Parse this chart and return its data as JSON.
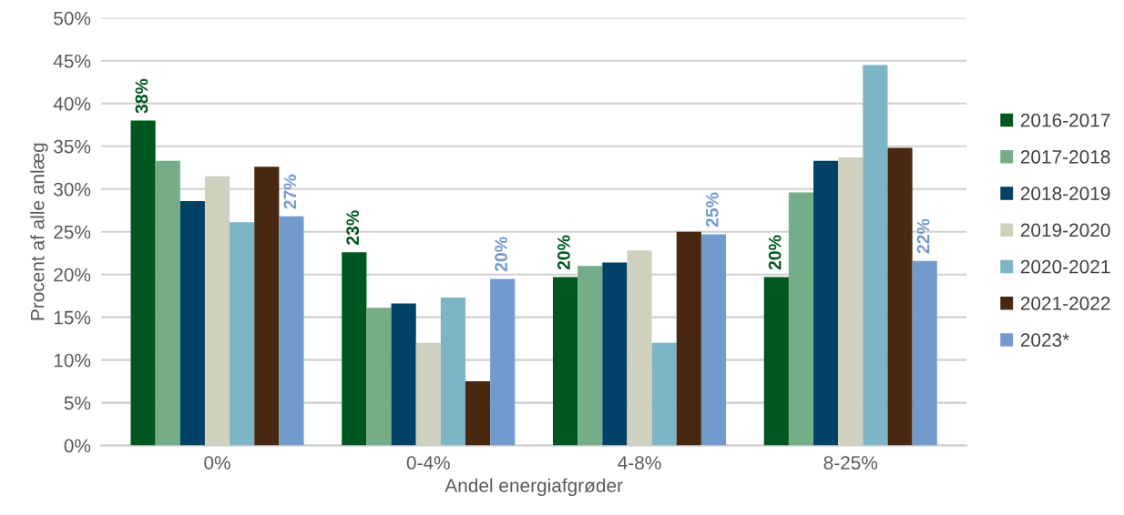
{
  "chart_data": {
    "type": "bar",
    "xlabel": "Andel energiafgrøder",
    "ylabel": "Procent af alle anlæg",
    "categories": [
      "0%",
      "0-4%",
      "4-8%",
      "8-25%"
    ],
    "series": [
      {
        "name": "2016-2017",
        "color": "#00561f",
        "values": [
          38,
          22.6,
          19.7,
          19.7
        ],
        "value_labels": [
          "38%",
          "23%",
          "20%",
          "20%"
        ]
      },
      {
        "name": "2017-2018",
        "color": "#74ad88",
        "values": [
          33.3,
          16.1,
          21.0,
          29.6
        ]
      },
      {
        "name": "2018-2019",
        "color": "#004165",
        "values": [
          28.6,
          16.6,
          21.4,
          33.3
        ]
      },
      {
        "name": "2019-2020",
        "color": "#d0d0bf",
        "values": [
          31.5,
          12.0,
          22.8,
          33.7
        ]
      },
      {
        "name": "2020-2021",
        "color": "#7db4c6",
        "values": [
          26.1,
          17.3,
          12.0,
          44.5
        ]
      },
      {
        "name": "2021-2022",
        "color": "#482810",
        "values": [
          32.6,
          7.5,
          25.0,
          34.8
        ]
      },
      {
        "name": "2023*",
        "color": "#729acd",
        "values": [
          26.8,
          19.5,
          24.7,
          21.6
        ],
        "value_labels": [
          "27%",
          "20%",
          "25%",
          "22%"
        ]
      }
    ],
    "ylim": [
      0,
      50
    ],
    "yticks": [
      {
        "value": 0,
        "label": "0%"
      },
      {
        "value": 5,
        "label": "5%"
      },
      {
        "value": 10,
        "label": "10%"
      },
      {
        "value": 15,
        "label": "15%"
      },
      {
        "value": 20,
        "label": "20%"
      },
      {
        "value": 25,
        "label": "25%"
      },
      {
        "value": 30,
        "label": "30%"
      },
      {
        "value": 35,
        "label": "35%"
      },
      {
        "value": 40,
        "label": "40%"
      },
      {
        "value": 45,
        "label": "45%"
      },
      {
        "value": 50,
        "label": "50%"
      }
    ],
    "grid": "y",
    "legend": "right"
  }
}
